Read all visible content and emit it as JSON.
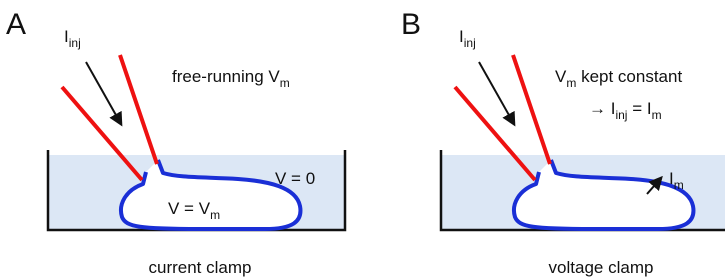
{
  "panels": [
    {
      "letter": "A",
      "injection": [
        "I",
        "inj"
      ],
      "note": [
        "free-running V",
        "m"
      ],
      "bath": "V = 0",
      "cell": [
        "V = V",
        "m"
      ],
      "caption": "current clamp"
    },
    {
      "letter": "B",
      "injection": [
        "I",
        "inj"
      ],
      "note": [
        "V",
        "m",
        " kept constant"
      ],
      "note2": [
        "→ I",
        "inj",
        " = I",
        "m"
      ],
      "membrane": [
        "I",
        "m"
      ],
      "caption": "voltage clamp"
    }
  ]
}
